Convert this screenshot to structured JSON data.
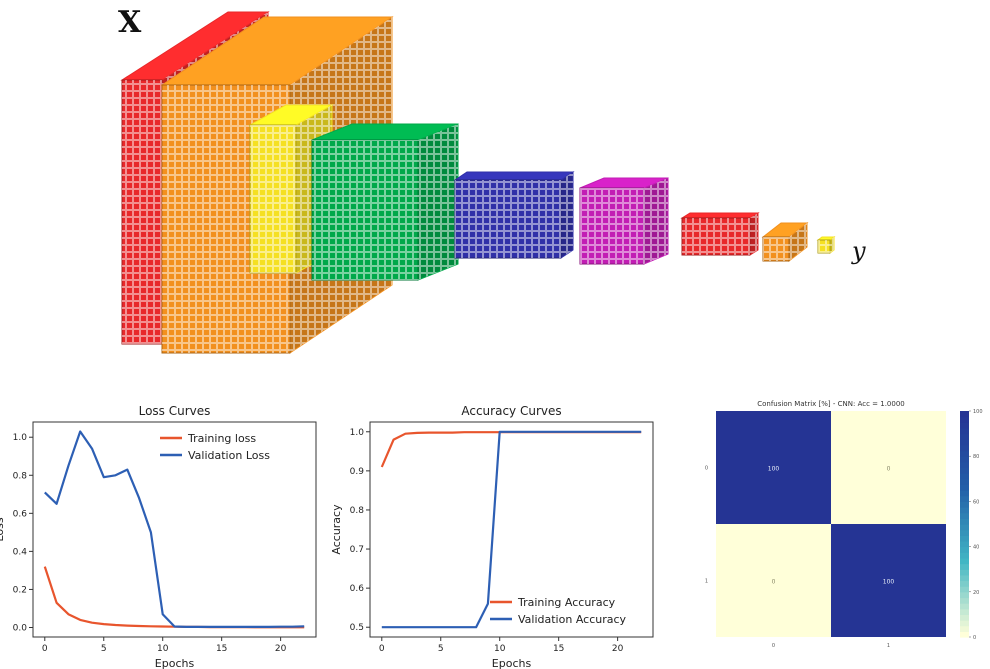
{
  "architecture": {
    "input_label": "X",
    "output_label": "y",
    "layers": [
      {
        "color": "#e8282a"
      },
      {
        "color": "#f2901e"
      },
      {
        "color": "#f5e022"
      },
      {
        "color": "#00a84a"
      },
      {
        "color": "#3030a8"
      },
      {
        "color": "#c21eb4"
      },
      {
        "color": "#e8282a"
      },
      {
        "color": "#f2901e"
      },
      {
        "color": "#f5e022"
      }
    ]
  },
  "chart_data": [
    {
      "type": "line",
      "title": "Loss Curves",
      "xlabel": "Epochs",
      "ylabel": "Loss",
      "xlim": [
        -1,
        23
      ],
      "ylim": [
        -0.05,
        1.08
      ],
      "xticks": [
        0,
        5,
        10,
        15,
        20
      ],
      "yticks": [
        0.0,
        0.2,
        0.4,
        0.6,
        0.8,
        1.0
      ],
      "legend": "top-right",
      "x": [
        0,
        1,
        2,
        3,
        4,
        5,
        6,
        7,
        8,
        9,
        10,
        11,
        12,
        13,
        14,
        15,
        16,
        17,
        18,
        19,
        20,
        21,
        22
      ],
      "series": [
        {
          "name": "Training loss",
          "color": "#e8552d",
          "values": [
            0.32,
            0.13,
            0.07,
            0.04,
            0.025,
            0.018,
            0.013,
            0.01,
            0.008,
            0.006,
            0.005,
            0.004,
            0.003,
            0.003,
            0.002,
            0.002,
            0.002,
            0.002,
            0.001,
            0.001,
            0.001,
            0.001,
            0.001
          ]
        },
        {
          "name": "Validation Loss",
          "color": "#2d5fb4",
          "values": [
            0.71,
            0.65,
            0.85,
            1.03,
            0.94,
            0.79,
            0.8,
            0.83,
            0.68,
            0.5,
            0.07,
            0.005,
            0.003,
            0.003,
            0.003,
            0.003,
            0.003,
            0.003,
            0.003,
            0.003,
            0.004,
            0.004,
            0.006
          ]
        }
      ]
    },
    {
      "type": "line",
      "title": "Accuracy Curves",
      "xlabel": "Epochs",
      "ylabel": "Accuracy",
      "xlim": [
        -1,
        23
      ],
      "ylim": [
        0.475,
        1.025
      ],
      "xticks": [
        0,
        5,
        10,
        15,
        20
      ],
      "yticks": [
        0.5,
        0.6,
        0.7,
        0.8,
        0.9,
        1.0
      ],
      "legend": "bottom-right",
      "x": [
        0,
        1,
        2,
        3,
        4,
        5,
        6,
        7,
        8,
        9,
        10,
        11,
        12,
        13,
        14,
        15,
        16,
        17,
        18,
        19,
        20,
        21,
        22
      ],
      "series": [
        {
          "name": "Training Accuracy",
          "color": "#e8552d",
          "values": [
            0.91,
            0.98,
            0.995,
            0.997,
            0.998,
            0.998,
            0.998,
            0.999,
            0.999,
            0.999,
            0.999,
            0.999,
            0.999,
            0.999,
            0.999,
            0.999,
            0.999,
            0.999,
            0.999,
            0.999,
            0.999,
            0.999,
            0.999
          ]
        },
        {
          "name": "Validation Accuracy",
          "color": "#2d5fb4",
          "values": [
            0.5,
            0.5,
            0.5,
            0.5,
            0.5,
            0.5,
            0.5,
            0.5,
            0.5,
            0.56,
            1.0,
            1.0,
            1.0,
            1.0,
            1.0,
            1.0,
            1.0,
            1.0,
            1.0,
            1.0,
            1.0,
            1.0,
            1.0
          ]
        }
      ]
    },
    {
      "type": "heatmap",
      "title": "Confusion Matrix [%] - CNN: Acc = 1.0000",
      "row_labels": [
        "0",
        "1"
      ],
      "col_labels": [
        "0",
        "1"
      ],
      "values": [
        [
          100,
          0
        ],
        [
          0,
          100
        ]
      ],
      "colorbar_ticks": [
        0,
        20,
        40,
        60,
        80,
        100
      ],
      "colormap": [
        "#ffffd9",
        "#41b6c4",
        "#225ea8",
        "#253494"
      ]
    }
  ]
}
